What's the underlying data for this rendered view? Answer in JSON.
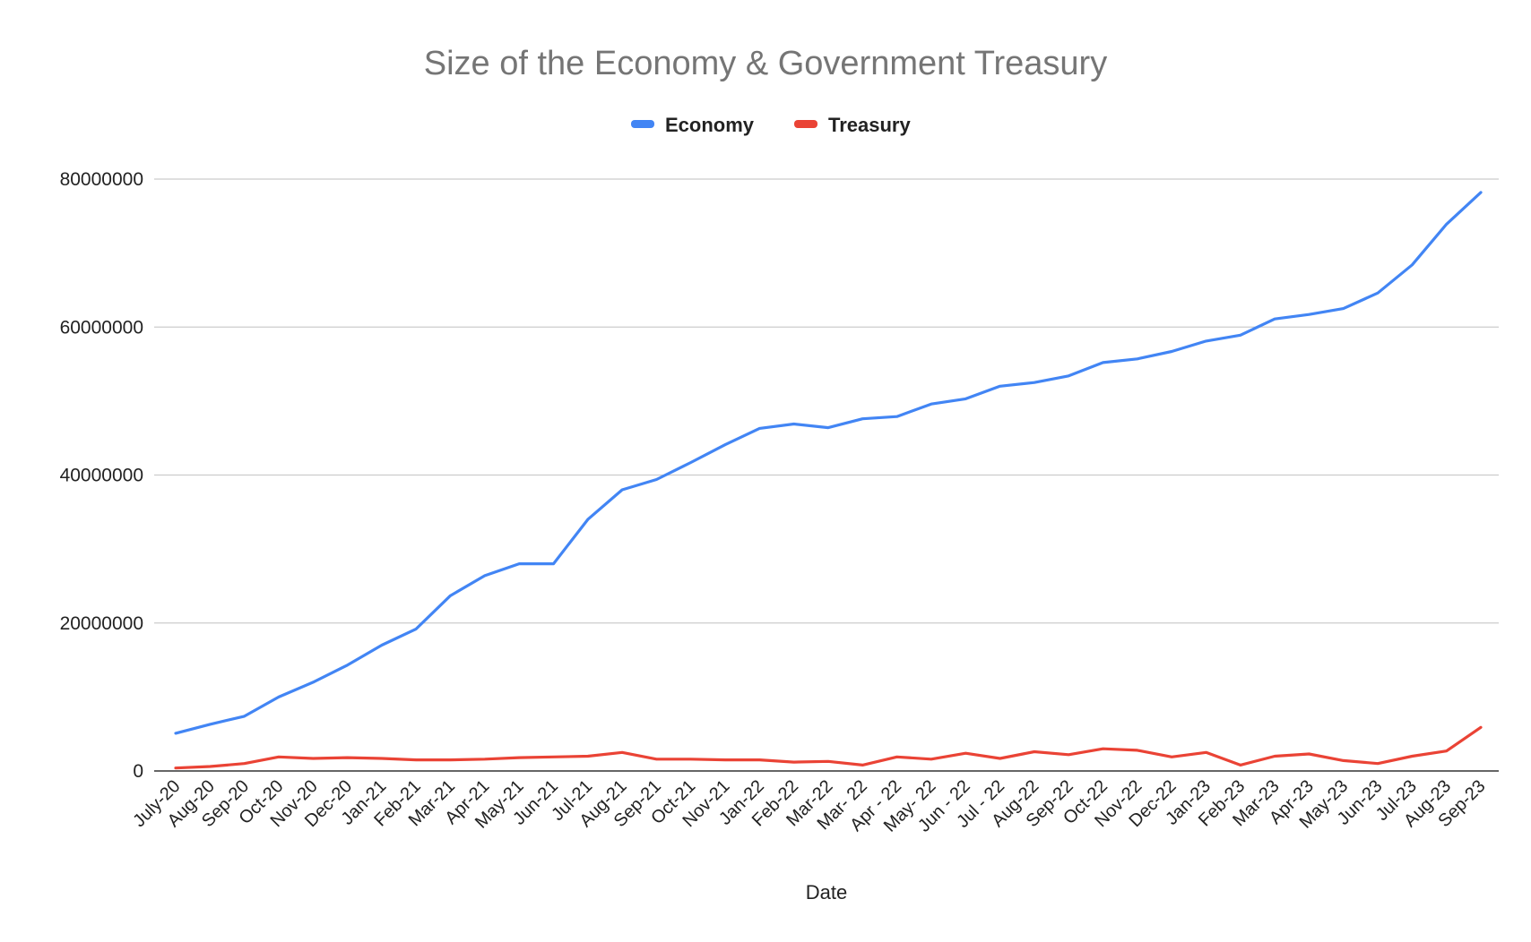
{
  "chart_data": {
    "type": "line",
    "title": "Size of the Economy & Government Treasury",
    "xlabel": "Date",
    "ylabel": "",
    "ylim": [
      0,
      80000000
    ],
    "yticks": [
      0,
      20000000,
      40000000,
      60000000,
      80000000
    ],
    "ytick_labels": [
      "0",
      "20000000",
      "40000000",
      "60000000",
      "80000000"
    ],
    "grid": true,
    "legend_position": "top-center",
    "categories": [
      "July-20",
      "Aug-20",
      "Sep-20",
      "Oct-20",
      "Nov-20",
      "Dec-20",
      "Jan-21",
      "Feb-21",
      "Mar-21",
      "Apr-21",
      "May-21",
      "Jun-21",
      "Jul-21",
      "Aug-21",
      "Sep-21",
      "Oct-21",
      "Nov-21",
      "Jan-22",
      "Feb-22",
      "Mar-22",
      "Mar- 22",
      "Apr - 22",
      "May- 22",
      "Jun - 22",
      "Jul - 22",
      "Aug-22",
      "Sep-22",
      "Oct-22",
      "Nov-22",
      "Dec-22",
      "Jan-23",
      "Feb-23",
      "Mar-23",
      "Apr-23",
      "May-23",
      "Jun-23",
      "Jul-23",
      "Aug-23",
      "Sep-23"
    ],
    "series": [
      {
        "name": "Economy",
        "color": "#4285f4",
        "values": [
          5100000,
          6300000,
          7400000,
          10000000,
          12000000,
          14300000,
          17000000,
          19200000,
          23700000,
          26400000,
          28000000,
          28000000,
          34000000,
          38000000,
          39400000,
          41700000,
          44100000,
          46300000,
          46900000,
          46400000,
          47600000,
          47900000,
          49600000,
          50300000,
          52000000,
          52500000,
          53400000,
          55200000,
          55700000,
          56700000,
          58100000,
          58900000,
          61100000,
          61700000,
          62500000,
          64600000,
          68400000,
          73900000,
          78200000
        ]
      },
      {
        "name": "Treasury",
        "color": "#ea4335",
        "values": [
          400000,
          600000,
          1000000,
          1900000,
          1700000,
          1800000,
          1700000,
          1500000,
          1500000,
          1600000,
          1800000,
          1900000,
          2000000,
          2500000,
          1600000,
          1600000,
          1500000,
          1500000,
          1200000,
          1300000,
          800000,
          1900000,
          1600000,
          2400000,
          1700000,
          2600000,
          2200000,
          3000000,
          2800000,
          1900000,
          2500000,
          800000,
          2000000,
          2300000,
          1400000,
          1000000,
          2000000,
          2700000,
          5900000
        ]
      }
    ]
  }
}
